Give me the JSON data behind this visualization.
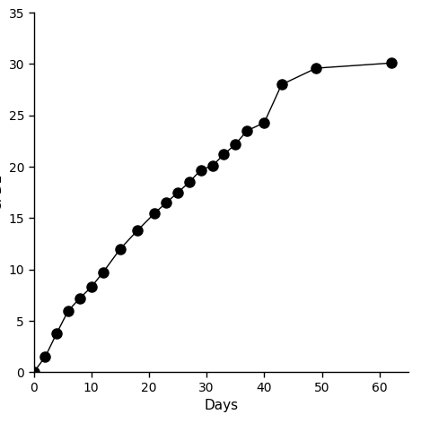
{
  "x": [
    0,
    2,
    4,
    6,
    8,
    10,
    12,
    15,
    18,
    21,
    23,
    25,
    27,
    29,
    31,
    33,
    35,
    37,
    40,
    43,
    49,
    62
  ],
  "y": [
    0,
    1.5,
    3.8,
    6.0,
    7.2,
    8.3,
    9.7,
    12.0,
    13.8,
    15.5,
    16.5,
    17.5,
    18.5,
    19.7,
    20.1,
    21.2,
    22.2,
    23.5,
    24.3,
    28.0,
    29.6,
    30.1
  ],
  "xlabel": "Days",
  "xlim": [
    0,
    65
  ],
  "ylim": [
    0,
    35
  ],
  "xticks": [
    0,
    10,
    20,
    30,
    40,
    50,
    60
  ],
  "yticks": [
    0,
    5,
    10,
    15,
    20,
    25,
    30,
    35
  ],
  "marker": "o",
  "marker_color": "black",
  "marker_size": 8,
  "line_color": "black",
  "line_width": 1.0,
  "background_color": "#ffffff",
  "xlabel_fontsize": 11,
  "ylabel_fontsize": 11,
  "tick_labelsize": 10
}
